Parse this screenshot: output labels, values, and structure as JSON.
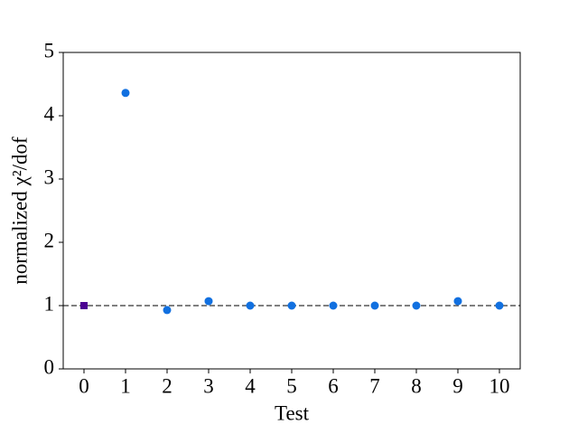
{
  "chart_data": {
    "type": "scatter",
    "xlabel": "Test",
    "ylabel": "normalized χ²/dof",
    "series": [
      {
        "color": "#4b0092",
        "marker": "square",
        "x": [
          0
        ],
        "values": [
          1.0
        ]
      },
      {
        "color": "#1170e0",
        "marker": "circle",
        "x": [
          1,
          2,
          3,
          4,
          5,
          6,
          7,
          8,
          9,
          10
        ],
        "values": [
          4.36,
          0.93,
          1.07,
          1.0,
          1.0,
          1.0,
          1.0,
          1.0,
          1.07,
          1.0
        ]
      }
    ],
    "hline": {
      "value": 1,
      "color": "#555555",
      "style": "dashed"
    },
    "xlim": [
      -0.5,
      10.5
    ],
    "xticks": [
      0,
      1,
      2,
      3,
      4,
      5,
      6,
      7,
      8,
      9,
      10
    ],
    "ylim": [
      0,
      5
    ],
    "yticks": [
      0,
      1,
      2,
      3,
      4,
      5
    ]
  }
}
